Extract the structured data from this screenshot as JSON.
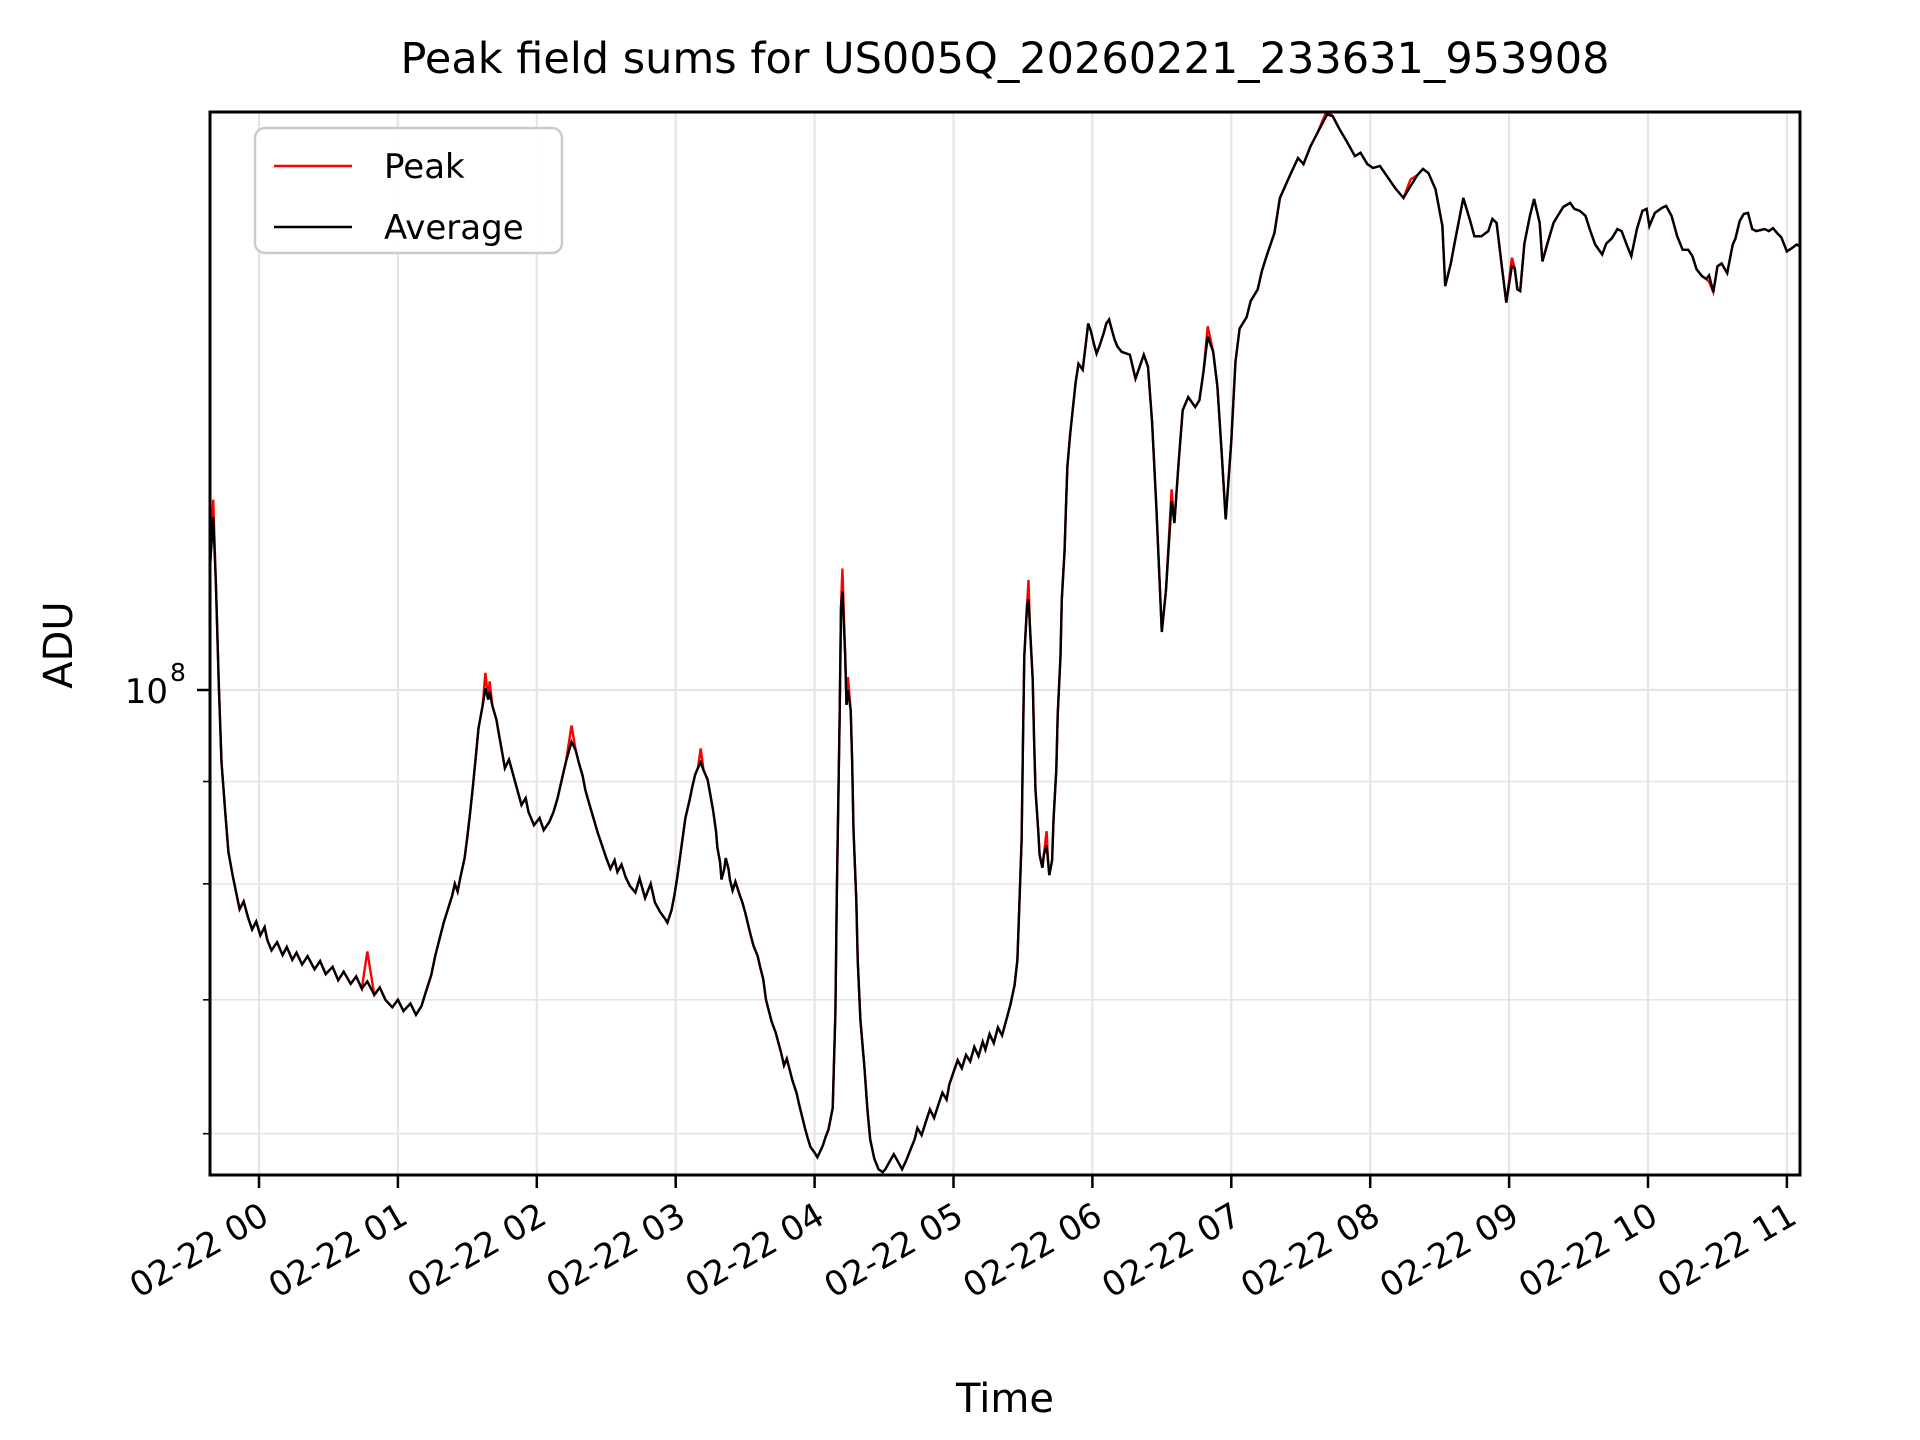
{
  "figure": {
    "title": "Peak field sums for US005Q_20260221_233631_953908",
    "background": "#ffffff"
  },
  "chart_data": {
    "type": "line",
    "title": "Peak field sums for US005Q_20260221_233631_953908",
    "xlabel": "Time",
    "ylabel": "ADU",
    "y_scale": "log",
    "grid": true,
    "legend_position": "upper-left",
    "x_unit": "hours since 2026-02-22 00:00 UTC",
    "value_unit": "1e7 ADU",
    "xlim": [
      -0.35,
      11.1
    ],
    "ylim_adu": [
      57000000.0,
      195000000.0
    ],
    "y_tick": {
      "base": "10",
      "exp": "8"
    },
    "y_gridline_values_e7": [
      10.0,
      9.0,
      8.0,
      7.0,
      6.0
    ],
    "x_tick_labels": [
      "02-22 00",
      "02-22 01",
      "02-22 02",
      "02-22 03",
      "02-22 04",
      "02-22 05",
      "02-22 06",
      "02-22 07",
      "02-22 08",
      "02-22 09",
      "02-22 10",
      "02-22 11"
    ],
    "series": [
      {
        "name": "Peak",
        "color": "#ff0000"
      },
      {
        "name": "Average",
        "color": "#000000"
      }
    ],
    "average_points": [
      [
        -0.35,
        11.6
      ],
      [
        -0.33,
        12.2
      ],
      [
        -0.31,
        11.3
      ],
      [
        -0.29,
        10.1
      ],
      [
        -0.27,
        9.2
      ],
      [
        -0.24,
        8.63
      ],
      [
        -0.22,
        8.3
      ],
      [
        -0.19,
        8.08
      ],
      [
        -0.14,
        7.77
      ],
      [
        -0.11,
        7.84
      ],
      [
        -0.08,
        7.7
      ],
      [
        -0.05,
        7.59
      ],
      [
        -0.02,
        7.66
      ],
      [
        0.01,
        7.54
      ],
      [
        0.04,
        7.61
      ],
      [
        0.06,
        7.5
      ],
      [
        0.09,
        7.41
      ],
      [
        0.13,
        7.48
      ],
      [
        0.17,
        7.37
      ],
      [
        0.2,
        7.44
      ],
      [
        0.24,
        7.33
      ],
      [
        0.27,
        7.39
      ],
      [
        0.31,
        7.29
      ],
      [
        0.35,
        7.36
      ],
      [
        0.4,
        7.25
      ],
      [
        0.44,
        7.32
      ],
      [
        0.48,
        7.21
      ],
      [
        0.53,
        7.27
      ],
      [
        0.57,
        7.16
      ],
      [
        0.61,
        7.23
      ],
      [
        0.66,
        7.13
      ],
      [
        0.7,
        7.19
      ],
      [
        0.74,
        7.09
      ],
      [
        0.78,
        7.15
      ],
      [
        0.83,
        7.04
      ],
      [
        0.87,
        7.1
      ],
      [
        0.91,
        7.0
      ],
      [
        0.96,
        6.94
      ],
      [
        1.0,
        7.0
      ],
      [
        1.04,
        6.91
      ],
      [
        1.09,
        6.97
      ],
      [
        1.13,
        6.88
      ],
      [
        1.17,
        6.95
      ],
      [
        1.2,
        7.06
      ],
      [
        1.24,
        7.2
      ],
      [
        1.27,
        7.37
      ],
      [
        1.3,
        7.51
      ],
      [
        1.33,
        7.65
      ],
      [
        1.36,
        7.77
      ],
      [
        1.39,
        7.89
      ],
      [
        1.41,
        8.0
      ],
      [
        1.43,
        7.93
      ],
      [
        1.45,
        8.06
      ],
      [
        1.48,
        8.24
      ],
      [
        1.5,
        8.45
      ],
      [
        1.52,
        8.68
      ],
      [
        1.54,
        8.95
      ],
      [
        1.56,
        9.25
      ],
      [
        1.58,
        9.57
      ],
      [
        1.61,
        9.82
      ],
      [
        1.63,
        10.02
      ],
      [
        1.65,
        9.89
      ],
      [
        1.66,
        9.98
      ],
      [
        1.68,
        9.82
      ],
      [
        1.71,
        9.66
      ],
      [
        1.73,
        9.48
      ],
      [
        1.75,
        9.31
      ],
      [
        1.77,
        9.14
      ],
      [
        1.8,
        9.23
      ],
      [
        1.83,
        9.07
      ],
      [
        1.86,
        8.91
      ],
      [
        1.89,
        8.76
      ],
      [
        1.92,
        8.83
      ],
      [
        1.94,
        8.69
      ],
      [
        1.98,
        8.56
      ],
      [
        2.02,
        8.63
      ],
      [
        2.05,
        8.51
      ],
      [
        2.09,
        8.59
      ],
      [
        2.12,
        8.69
      ],
      [
        2.15,
        8.83
      ],
      [
        2.18,
        9.02
      ],
      [
        2.21,
        9.21
      ],
      [
        2.25,
        9.42
      ],
      [
        2.28,
        9.33
      ],
      [
        2.3,
        9.21
      ],
      [
        2.33,
        9.06
      ],
      [
        2.35,
        8.91
      ],
      [
        2.38,
        8.76
      ],
      [
        2.41,
        8.62
      ],
      [
        2.44,
        8.48
      ],
      [
        2.47,
        8.36
      ],
      [
        2.5,
        8.24
      ],
      [
        2.53,
        8.14
      ],
      [
        2.56,
        8.22
      ],
      [
        2.58,
        8.11
      ],
      [
        2.61,
        8.18
      ],
      [
        2.64,
        8.06
      ],
      [
        2.67,
        7.98
      ],
      [
        2.71,
        7.92
      ],
      [
        2.74,
        8.05
      ],
      [
        2.78,
        7.87
      ],
      [
        2.82,
        8.0
      ],
      [
        2.85,
        7.83
      ],
      [
        2.89,
        7.74
      ],
      [
        2.92,
        7.69
      ],
      [
        2.94,
        7.65
      ],
      [
        2.97,
        7.76
      ],
      [
        2.99,
        7.89
      ],
      [
        3.01,
        8.05
      ],
      [
        3.03,
        8.24
      ],
      [
        3.05,
        8.43
      ],
      [
        3.07,
        8.63
      ],
      [
        3.1,
        8.81
      ],
      [
        3.12,
        8.95
      ],
      [
        3.14,
        9.07
      ],
      [
        3.16,
        9.14
      ],
      [
        3.18,
        9.2
      ],
      [
        3.2,
        9.12
      ],
      [
        3.23,
        9.02
      ],
      [
        3.25,
        8.86
      ],
      [
        3.27,
        8.7
      ],
      [
        3.29,
        8.5
      ],
      [
        3.3,
        8.34
      ],
      [
        3.32,
        8.2
      ],
      [
        3.33,
        8.04
      ],
      [
        3.35,
        8.14
      ],
      [
        3.36,
        8.24
      ],
      [
        3.38,
        8.14
      ],
      [
        3.39,
        8.04
      ],
      [
        3.41,
        7.94
      ],
      [
        3.43,
        8.02
      ],
      [
        3.46,
        7.9
      ],
      [
        3.48,
        7.83
      ],
      [
        3.5,
        7.74
      ],
      [
        3.52,
        7.64
      ],
      [
        3.54,
        7.54
      ],
      [
        3.56,
        7.45
      ],
      [
        3.59,
        7.36
      ],
      [
        3.61,
        7.26
      ],
      [
        3.63,
        7.17
      ],
      [
        3.65,
        7.0
      ],
      [
        3.69,
        6.83
      ],
      [
        3.72,
        6.74
      ],
      [
        3.74,
        6.66
      ],
      [
        3.76,
        6.58
      ],
      [
        3.78,
        6.49
      ],
      [
        3.8,
        6.54
      ],
      [
        3.82,
        6.46
      ],
      [
        3.84,
        6.38
      ],
      [
        3.87,
        6.29
      ],
      [
        3.89,
        6.2
      ],
      [
        3.91,
        6.12
      ],
      [
        3.93,
        6.04
      ],
      [
        3.95,
        5.97
      ],
      [
        3.97,
        5.91
      ],
      [
        4.0,
        5.87
      ],
      [
        4.02,
        5.84
      ],
      [
        4.04,
        5.88
      ],
      [
        4.06,
        5.92
      ],
      [
        4.08,
        5.98
      ],
      [
        4.1,
        6.03
      ],
      [
        4.13,
        6.18
      ],
      [
        4.15,
        6.9
      ],
      [
        4.16,
        7.9
      ],
      [
        4.18,
        9.66
      ],
      [
        4.19,
        11.0
      ],
      [
        4.2,
        11.2
      ],
      [
        4.22,
        10.4
      ],
      [
        4.23,
        9.83
      ],
      [
        4.24,
        10.0
      ],
      [
        4.26,
        9.77
      ],
      [
        4.27,
        9.23
      ],
      [
        4.28,
        8.51
      ],
      [
        4.3,
        7.85
      ],
      [
        4.31,
        7.33
      ],
      [
        4.33,
        6.84
      ],
      [
        4.36,
        6.46
      ],
      [
        4.38,
        6.17
      ],
      [
        4.4,
        5.96
      ],
      [
        4.43,
        5.83
      ],
      [
        4.46,
        5.76
      ],
      [
        4.49,
        5.74
      ],
      [
        4.51,
        5.76
      ],
      [
        4.54,
        5.81
      ],
      [
        4.57,
        5.86
      ],
      [
        4.6,
        5.81
      ],
      [
        4.63,
        5.76
      ],
      [
        4.66,
        5.82
      ],
      [
        4.69,
        5.89
      ],
      [
        4.72,
        5.96
      ],
      [
        4.74,
        6.04
      ],
      [
        4.77,
        5.99
      ],
      [
        4.8,
        6.08
      ],
      [
        4.83,
        6.17
      ],
      [
        4.86,
        6.11
      ],
      [
        4.89,
        6.2
      ],
      [
        4.92,
        6.29
      ],
      [
        4.95,
        6.24
      ],
      [
        4.97,
        6.35
      ],
      [
        5.0,
        6.44
      ],
      [
        5.03,
        6.53
      ],
      [
        5.06,
        6.47
      ],
      [
        5.09,
        6.57
      ],
      [
        5.12,
        6.52
      ],
      [
        5.15,
        6.63
      ],
      [
        5.18,
        6.56
      ],
      [
        5.21,
        6.67
      ],
      [
        5.23,
        6.61
      ],
      [
        5.26,
        6.73
      ],
      [
        5.29,
        6.66
      ],
      [
        5.32,
        6.78
      ],
      [
        5.35,
        6.72
      ],
      [
        5.38,
        6.84
      ],
      [
        5.41,
        6.96
      ],
      [
        5.44,
        7.12
      ],
      [
        5.46,
        7.33
      ],
      [
        5.47,
        7.67
      ],
      [
        5.49,
        8.41
      ],
      [
        5.5,
        9.44
      ],
      [
        5.51,
        10.4
      ],
      [
        5.53,
        11.03
      ],
      [
        5.54,
        11.1
      ],
      [
        5.55,
        10.77
      ],
      [
        5.57,
        10.12
      ],
      [
        5.58,
        9.44
      ],
      [
        5.59,
        8.91
      ],
      [
        5.61,
        8.51
      ],
      [
        5.62,
        8.27
      ],
      [
        5.64,
        8.15
      ],
      [
        5.65,
        8.27
      ],
      [
        5.67,
        8.36
      ],
      [
        5.68,
        8.22
      ],
      [
        5.69,
        8.08
      ],
      [
        5.71,
        8.22
      ],
      [
        5.72,
        8.61
      ],
      [
        5.74,
        9.12
      ],
      [
        5.75,
        9.72
      ],
      [
        5.77,
        10.4
      ],
      [
        5.78,
        11.1
      ],
      [
        5.8,
        11.75
      ],
      [
        5.81,
        12.36
      ],
      [
        5.82,
        12.94
      ],
      [
        5.84,
        13.43
      ],
      [
        5.86,
        13.85
      ],
      [
        5.88,
        14.26
      ],
      [
        5.9,
        14.56
      ],
      [
        5.93,
        14.46
      ],
      [
        5.95,
        14.85
      ],
      [
        5.97,
        15.25
      ],
      [
        5.99,
        15.11
      ],
      [
        6.01,
        14.9
      ],
      [
        6.03,
        14.73
      ],
      [
        6.05,
        14.85
      ],
      [
        6.08,
        15.07
      ],
      [
        6.1,
        15.25
      ],
      [
        6.12,
        15.32
      ],
      [
        6.14,
        15.14
      ],
      [
        6.16,
        14.97
      ],
      [
        6.18,
        14.85
      ],
      [
        6.21,
        14.76
      ],
      [
        6.27,
        14.71
      ],
      [
        6.31,
        14.31
      ],
      [
        6.37,
        14.71
      ],
      [
        6.4,
        14.51
      ],
      [
        6.43,
        13.61
      ],
      [
        6.46,
        12.36
      ],
      [
        6.5,
        10.69
      ],
      [
        6.53,
        11.22
      ],
      [
        6.57,
        12.43
      ],
      [
        6.59,
        12.12
      ],
      [
        6.62,
        12.97
      ],
      [
        6.65,
        13.8
      ],
      [
        6.69,
        14.01
      ],
      [
        6.74,
        13.85
      ],
      [
        6.77,
        13.96
      ],
      [
        6.8,
        14.43
      ],
      [
        6.83,
        15.02
      ],
      [
        6.87,
        14.76
      ],
      [
        6.9,
        14.18
      ],
      [
        6.93,
        13.16
      ],
      [
        6.96,
        12.17
      ],
      [
        7.0,
        13.32
      ],
      [
        7.03,
        14.6
      ],
      [
        7.06,
        15.16
      ],
      [
        7.11,
        15.36
      ],
      [
        7.14,
        15.65
      ],
      [
        7.19,
        15.86
      ],
      [
        7.22,
        16.2
      ],
      [
        7.26,
        16.53
      ],
      [
        7.31,
        16.92
      ],
      [
        7.35,
        17.62
      ],
      [
        7.42,
        18.07
      ],
      [
        7.48,
        18.45
      ],
      [
        7.52,
        18.32
      ],
      [
        7.57,
        18.7
      ],
      [
        7.62,
        18.99
      ],
      [
        7.69,
        19.4
      ],
      [
        7.73,
        19.36
      ],
      [
        7.78,
        19.07
      ],
      [
        7.83,
        18.81
      ],
      [
        7.89,
        18.49
      ],
      [
        7.93,
        18.56
      ],
      [
        7.98,
        18.32
      ],
      [
        8.02,
        18.24
      ],
      [
        8.07,
        18.28
      ],
      [
        8.12,
        18.07
      ],
      [
        8.18,
        17.82
      ],
      [
        8.24,
        17.62
      ],
      [
        8.29,
        17.86
      ],
      [
        8.34,
        18.09
      ],
      [
        8.38,
        18.22
      ],
      [
        8.42,
        18.13
      ],
      [
        8.47,
        17.8
      ],
      [
        8.52,
        17.06
      ],
      [
        8.54,
        15.92
      ],
      [
        8.58,
        16.34
      ],
      [
        8.61,
        16.76
      ],
      [
        8.67,
        17.62
      ],
      [
        8.72,
        17.16
      ],
      [
        8.75,
        16.86
      ],
      [
        8.8,
        16.86
      ],
      [
        8.85,
        16.96
      ],
      [
        8.88,
        17.2
      ],
      [
        8.91,
        17.12
      ],
      [
        8.95,
        16.23
      ],
      [
        8.98,
        15.62
      ],
      [
        9.02,
        16.29
      ],
      [
        9.04,
        16.25
      ],
      [
        9.06,
        15.86
      ],
      [
        9.08,
        15.83
      ],
      [
        9.11,
        16.72
      ],
      [
        9.15,
        17.26
      ],
      [
        9.18,
        17.6
      ],
      [
        9.22,
        17.12
      ],
      [
        9.24,
        16.38
      ],
      [
        9.28,
        16.76
      ],
      [
        9.32,
        17.12
      ],
      [
        9.35,
        17.26
      ],
      [
        9.39,
        17.44
      ],
      [
        9.44,
        17.52
      ],
      [
        9.47,
        17.4
      ],
      [
        9.51,
        17.36
      ],
      [
        9.55,
        17.26
      ],
      [
        9.58,
        17.0
      ],
      [
        9.62,
        16.7
      ],
      [
        9.67,
        16.51
      ],
      [
        9.7,
        16.72
      ],
      [
        9.74,
        16.82
      ],
      [
        9.78,
        17.0
      ],
      [
        9.81,
        16.96
      ],
      [
        9.85,
        16.67
      ],
      [
        9.88,
        16.48
      ],
      [
        9.92,
        17.0
      ],
      [
        9.96,
        17.36
      ],
      [
        9.99,
        17.4
      ],
      [
        10.01,
        17.06
      ],
      [
        10.05,
        17.32
      ],
      [
        10.1,
        17.42
      ],
      [
        10.13,
        17.46
      ],
      [
        10.17,
        17.26
      ],
      [
        10.21,
        16.86
      ],
      [
        10.25,
        16.6
      ],
      [
        10.29,
        16.6
      ],
      [
        10.32,
        16.48
      ],
      [
        10.35,
        16.23
      ],
      [
        10.39,
        16.1
      ],
      [
        10.42,
        16.05
      ],
      [
        10.44,
        16.12
      ],
      [
        10.47,
        15.81
      ],
      [
        10.5,
        16.29
      ],
      [
        10.53,
        16.34
      ],
      [
        10.57,
        16.16
      ],
      [
        10.61,
        16.7
      ],
      [
        10.63,
        16.82
      ],
      [
        10.66,
        17.16
      ],
      [
        10.69,
        17.3
      ],
      [
        10.72,
        17.32
      ],
      [
        10.75,
        17.0
      ],
      [
        10.78,
        16.96
      ],
      [
        10.81,
        16.98
      ],
      [
        10.84,
        17.0
      ],
      [
        10.87,
        16.96
      ],
      [
        10.9,
        17.02
      ],
      [
        10.93,
        16.92
      ],
      [
        10.96,
        16.84
      ],
      [
        11.0,
        16.57
      ],
      [
        11.04,
        16.64
      ],
      [
        11.07,
        16.7
      ],
      [
        11.09,
        16.67
      ]
    ],
    "peak_tip_points": [
      [
        -0.33,
        12.45
      ],
      [
        0.78,
        7.4
      ],
      [
        1.63,
        10.2
      ],
      [
        1.66,
        10.1
      ],
      [
        2.25,
        9.6
      ],
      [
        3.18,
        9.35
      ],
      [
        4.2,
        11.5
      ],
      [
        4.24,
        10.15
      ],
      [
        5.54,
        11.35
      ],
      [
        5.67,
        8.5
      ],
      [
        6.57,
        12.6
      ],
      [
        6.83,
        15.2
      ],
      [
        7.69,
        19.5
      ],
      [
        8.29,
        18.0
      ],
      [
        9.02,
        16.45
      ],
      [
        10.44,
        16.0
      ]
    ]
  },
  "style_colors": {
    "grid": "#e5e5e5",
    "spine": "#000000",
    "legend_border": "#cccccc"
  }
}
